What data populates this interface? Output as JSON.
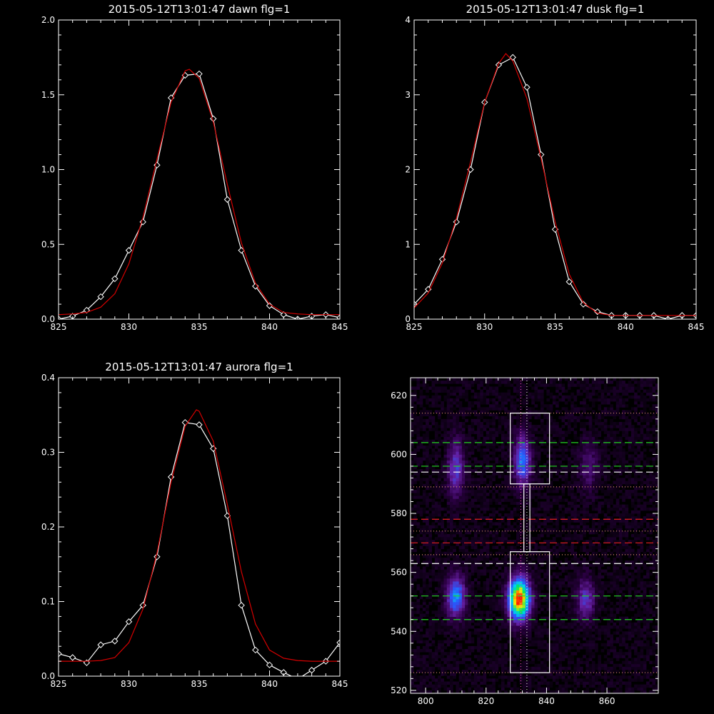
{
  "chart_data": [
    {
      "type": "line",
      "title": "2015-05-12T13:01:47 dawn flg=1",
      "xlim": [
        825,
        845
      ],
      "ylim": [
        0.0,
        2.0
      ],
      "xticks": [
        "825",
        "830",
        "835",
        "840",
        "845"
      ],
      "yticks": [
        "0.0",
        "0.5",
        "1.0",
        "1.5",
        "2.0"
      ],
      "colors": {
        "data": "#ffffff",
        "fit": "#d40000"
      },
      "series": [
        {
          "role": "data",
          "marker": "diamond",
          "x": [
            825,
            826,
            827,
            828,
            829,
            830,
            831,
            832,
            833,
            834,
            835,
            836,
            837,
            838,
            839,
            840,
            841,
            842,
            843,
            844,
            845
          ],
          "y": [
            0.0,
            0.02,
            0.06,
            0.15,
            0.27,
            0.46,
            0.65,
            1.03,
            1.48,
            1.63,
            1.64,
            1.34,
            0.8,
            0.46,
            0.22,
            0.09,
            0.03,
            0.0,
            0.02,
            0.03,
            0.01
          ]
        },
        {
          "role": "fit",
          "x": [
            825,
            826,
            827,
            828,
            829,
            830,
            831,
            832,
            833,
            834,
            834.3,
            835,
            836,
            837,
            838,
            839,
            840,
            841,
            842,
            843,
            844,
            845
          ],
          "y": [
            0.03,
            0.035,
            0.045,
            0.08,
            0.17,
            0.37,
            0.68,
            1.07,
            1.45,
            1.66,
            1.67,
            1.61,
            1.32,
            0.9,
            0.51,
            0.24,
            0.1,
            0.045,
            0.035,
            0.03,
            0.03,
            0.03
          ]
        }
      ]
    },
    {
      "type": "line",
      "title": "2015-05-12T13:01:47 dusk flg=1",
      "xlim": [
        825,
        845
      ],
      "ylim": [
        0,
        4
      ],
      "xticks": [
        "825",
        "830",
        "835",
        "840",
        "845"
      ],
      "yticks": [
        "0",
        "1",
        "2",
        "3",
        "4"
      ],
      "colors": {
        "data": "#ffffff",
        "fit": "#d40000"
      },
      "series": [
        {
          "role": "data",
          "marker": "diamond",
          "x": [
            825,
            826,
            827,
            828,
            829,
            830,
            831,
            832,
            833,
            834,
            835,
            836,
            837,
            838,
            839,
            840,
            841,
            842,
            843,
            844,
            845
          ],
          "y": [
            0.2,
            0.4,
            0.8,
            1.3,
            2.0,
            2.9,
            3.4,
            3.5,
            3.1,
            2.2,
            1.2,
            0.5,
            0.2,
            0.1,
            0.05,
            0.05,
            0.05,
            0.05,
            0.0,
            0.05,
            0.05
          ]
        },
        {
          "role": "fit",
          "x": [
            825,
            826,
            827,
            828,
            829,
            830,
            831,
            831.5,
            832,
            833,
            834,
            835,
            836,
            837,
            838,
            839,
            840,
            841,
            842,
            843,
            844,
            845
          ],
          "y": [
            0.15,
            0.35,
            0.75,
            1.35,
            2.1,
            2.9,
            3.42,
            3.55,
            3.45,
            2.95,
            2.15,
            1.3,
            0.6,
            0.22,
            0.08,
            0.05,
            0.05,
            0.05,
            0.05,
            0.05,
            0.05,
            0.05
          ]
        }
      ]
    },
    {
      "type": "line",
      "title": "2015-05-12T13:01:47 aurora flg=1",
      "xlim": [
        825,
        845
      ],
      "ylim": [
        0.0,
        0.4
      ],
      "xticks": [
        "825",
        "830",
        "835",
        "840",
        "845"
      ],
      "yticks": [
        "0.0",
        "0.1",
        "0.2",
        "0.3",
        "0.4"
      ],
      "colors": {
        "data": "#ffffff",
        "fit": "#d40000"
      },
      "series": [
        {
          "role": "data",
          "marker": "diamond",
          "x": [
            825,
            826,
            827,
            828,
            829,
            830,
            831,
            832,
            833,
            834,
            835,
            836,
            837,
            838,
            839,
            840,
            841,
            842,
            843,
            844,
            845
          ],
          "y": [
            0.03,
            0.025,
            0.018,
            0.042,
            0.047,
            0.073,
            0.095,
            0.16,
            0.267,
            0.34,
            0.337,
            0.305,
            0.215,
            0.095,
            0.035,
            0.015,
            0.005,
            -0.004,
            0.008,
            0.02,
            0.045
          ]
        },
        {
          "role": "fit",
          "x": [
            825,
            826,
            827,
            828,
            829,
            830,
            831,
            832,
            833,
            834,
            834.8,
            835,
            836,
            837,
            838,
            839,
            840,
            841,
            842,
            843,
            844,
            845
          ],
          "y": [
            0.02,
            0.02,
            0.02,
            0.021,
            0.025,
            0.045,
            0.09,
            0.165,
            0.26,
            0.335,
            0.357,
            0.355,
            0.315,
            0.23,
            0.14,
            0.07,
            0.035,
            0.024,
            0.021,
            0.02,
            0.02,
            0.02
          ]
        }
      ]
    },
    {
      "type": "heatmap",
      "xlim": [
        795,
        877
      ],
      "ylim": [
        519,
        626
      ],
      "xticks": [
        "800",
        "820",
        "840",
        "860"
      ],
      "yticks": [
        "520",
        "540",
        "560",
        "580",
        "600",
        "620"
      ],
      "blobs": [
        {
          "x": 810,
          "y": 595,
          "sx": 2.0,
          "sy": 7,
          "amp": 0.32
        },
        {
          "x": 832,
          "y": 598,
          "sx": 2.0,
          "sy": 6,
          "amp": 0.45
        },
        {
          "x": 854,
          "y": 596,
          "sx": 2.2,
          "sy": 6,
          "amp": 0.18
        },
        {
          "x": 810,
          "y": 552,
          "sx": 2.2,
          "sy": 5,
          "amp": 0.48
        },
        {
          "x": 831,
          "y": 551,
          "sx": 2.5,
          "sy": 5,
          "amp": 0.95
        },
        {
          "x": 853,
          "y": 551,
          "sx": 2.2,
          "sy": 5,
          "amp": 0.3
        }
      ],
      "vertical_lines": [
        {
          "x": 831.5,
          "style": "dotted",
          "color": "#ff4fc0"
        },
        {
          "x": 833.5,
          "style": "dotted",
          "color": "#ffffff"
        }
      ],
      "horizontal_lines": [
        {
          "y": 614,
          "style": "dotted",
          "color": "#d88a6a"
        },
        {
          "y": 604,
          "style": "dashed",
          "color": "#22d622"
        },
        {
          "y": 596,
          "style": "dashed",
          "color": "#22d622"
        },
        {
          "y": 594,
          "style": "dashed",
          "color": "#ffffff"
        },
        {
          "y": 589,
          "style": "dotted",
          "color": "#d88a6a"
        },
        {
          "y": 578,
          "style": "dashed",
          "color": "#e82020"
        },
        {
          "y": 574,
          "style": "dotted",
          "color": "#d88a6a"
        },
        {
          "y": 570,
          "style": "dashed",
          "color": "#e82020"
        },
        {
          "y": 566,
          "style": "dotted",
          "color": "#d88a6a"
        },
        {
          "y": 563,
          "style": "dashed",
          "color": "#ffffff"
        },
        {
          "y": 552,
          "style": "dashed",
          "color": "#22d622"
        },
        {
          "y": 544,
          "style": "dashed",
          "color": "#22d622"
        },
        {
          "y": 526,
          "style": "dotted",
          "color": "#d88a6a"
        }
      ],
      "boxes": [
        {
          "x1": 828,
          "x2": 841,
          "y1": 590,
          "y2": 614,
          "color": "#ffffff"
        },
        {
          "x1": 828,
          "x2": 841,
          "y1": 526,
          "y2": 567,
          "color": "#ffffff"
        },
        {
          "x1": 832.5,
          "x2": 834.5,
          "y1": 567,
          "y2": 590,
          "color": "#ffffff"
        }
      ]
    }
  ]
}
